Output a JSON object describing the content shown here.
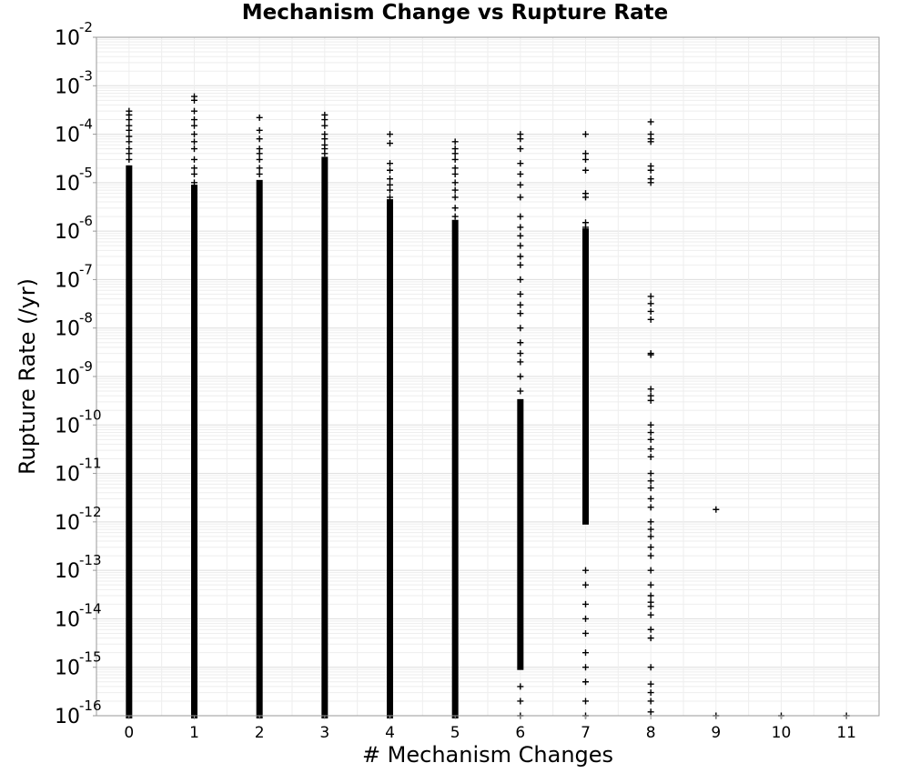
{
  "chart_data": {
    "type": "scatter",
    "title": "Mechanism Change vs Rupture Rate",
    "xlabel": "# Mechanism Changes",
    "ylabel": "Rupture Rate (/yr)",
    "x_ticks": [
      "0",
      "1",
      "2",
      "3",
      "4",
      "5",
      "6",
      "7",
      "8",
      "9",
      "10",
      "11"
    ],
    "xlim": [
      -0.5,
      11.5
    ],
    "y_scale": "log",
    "ylim": [
      1e-16,
      0.01
    ],
    "y_ticks": [
      {
        "base": "10",
        "exp": "-2",
        "value": 0.01
      },
      {
        "base": "10",
        "exp": "-3",
        "value": 0.001
      },
      {
        "base": "10",
        "exp": "-4",
        "value": 0.0001
      },
      {
        "base": "10",
        "exp": "-5",
        "value": 1e-05
      },
      {
        "base": "10",
        "exp": "-6",
        "value": 1e-06
      },
      {
        "base": "10",
        "exp": "-7",
        "value": 1e-07
      },
      {
        "base": "10",
        "exp": "-8",
        "value": 1e-08
      },
      {
        "base": "10",
        "exp": "-9",
        "value": 1e-09
      },
      {
        "base": "10",
        "exp": "-10",
        "value": 1e-10
      },
      {
        "base": "10",
        "exp": "-11",
        "value": 1e-11
      },
      {
        "base": "10",
        "exp": "-12",
        "value": 1e-12
      },
      {
        "base": "10",
        "exp": "-13",
        "value": 1e-13
      },
      {
        "base": "10",
        "exp": "-14",
        "value": 1e-14
      },
      {
        "base": "10",
        "exp": "-15",
        "value": 1e-15
      },
      {
        "base": "10",
        "exp": "-16",
        "value": 1e-16
      }
    ],
    "grid": true,
    "marker": "+",
    "marker_color": "#000000",
    "columns": [
      {
        "x": 0,
        "dense_range": [
          1e-16,
          2e-05
        ],
        "points": [
          0.0003,
          0.00025,
          0.0002,
          0.00015,
          0.00012,
          9e-05,
          7e-05,
          5e-05,
          4e-05,
          3e-05
        ]
      },
      {
        "x": 1,
        "dense_range": [
          1e-16,
          8e-06
        ],
        "points": [
          0.0006,
          0.0005,
          0.0003,
          0.0002,
          0.00015,
          0.0001,
          7e-05,
          5e-05,
          3e-05,
          2e-05,
          1.5e-05,
          1e-05
        ]
      },
      {
        "x": 2,
        "dense_range": [
          1e-16,
          1e-05
        ],
        "points": [
          0.00022,
          0.00012,
          8e-05,
          5e-05,
          4e-05,
          3e-05,
          2e-05,
          1.5e-05
        ]
      },
      {
        "x": 3,
        "dense_range": [
          1e-16,
          3e-05
        ],
        "points": [
          0.00025,
          0.0002,
          0.00015,
          0.0001,
          8e-05,
          6e-05,
          5e-05,
          4e-05
        ]
      },
      {
        "x": 4,
        "dense_range": [
          1e-16,
          4e-06
        ],
        "points": [
          0.0001,
          6.5e-05,
          2.5e-05,
          1.8e-05,
          1.2e-05,
          9e-06,
          7e-06,
          5e-06
        ]
      },
      {
        "x": 5,
        "dense_range": [
          1e-16,
          1.5e-06
        ],
        "points": [
          7e-05,
          5e-05,
          4e-05,
          3e-05,
          2e-05,
          1.5e-05,
          1e-05,
          7e-06,
          5e-06,
          3e-06,
          2e-06
        ]
      },
      {
        "x": 6,
        "dense_range": [
          1e-15,
          3e-10
        ],
        "points": [
          0.0001,
          8e-05,
          5e-05,
          2.5e-05,
          1.5e-05,
          9e-06,
          5e-06,
          2e-06,
          1.2e-06,
          8e-07,
          5e-07,
          3e-07,
          2e-07,
          1e-07,
          5e-08,
          3e-08,
          2e-08,
          1e-08,
          5e-09,
          3e-09,
          2e-09,
          1e-09,
          5e-10,
          1e-16,
          2e-16,
          4e-16
        ]
      },
      {
        "x": 7,
        "dense_range": [
          1e-12,
          1e-06
        ],
        "points": [
          0.0001,
          4e-05,
          3e-05,
          1.8e-05,
          6e-06,
          5e-06,
          1.5e-06,
          1.2e-06,
          1e-13,
          5e-14,
          2e-14,
          1e-14,
          5e-15,
          2e-15,
          1e-15,
          5e-16,
          2e-16,
          1e-16
        ]
      },
      {
        "x": 8,
        "dense_range": [],
        "points": [
          0.00018,
          0.0001,
          8e-05,
          7e-05,
          2.2e-05,
          1.8e-05,
          1.2e-05,
          1e-05,
          4.5e-08,
          3.2e-08,
          2.2e-08,
          1.5e-08,
          3e-09,
          2.8e-09,
          5.5e-10,
          4e-10,
          3.2e-10,
          1e-10,
          7e-11,
          5e-11,
          3.2e-11,
          2.2e-11,
          1e-11,
          7e-12,
          5e-12,
          3e-12,
          2e-12,
          1e-12,
          7e-13,
          5e-13,
          3e-13,
          2e-13,
          1e-13,
          5e-14,
          3e-14,
          2.2e-14,
          1.8e-14,
          1.2e-14,
          6e-15,
          4e-15,
          1e-15,
          4.5e-16,
          3e-16,
          2e-16,
          1.2e-16
        ]
      },
      {
        "x": 9,
        "dense_range": [],
        "points": [
          1.8e-12,
          1e-16
        ]
      },
      {
        "x": 10,
        "dense_range": [],
        "points": [
          1e-16
        ]
      },
      {
        "x": 11,
        "dense_range": [],
        "points": [
          1e-16
        ]
      }
    ]
  }
}
